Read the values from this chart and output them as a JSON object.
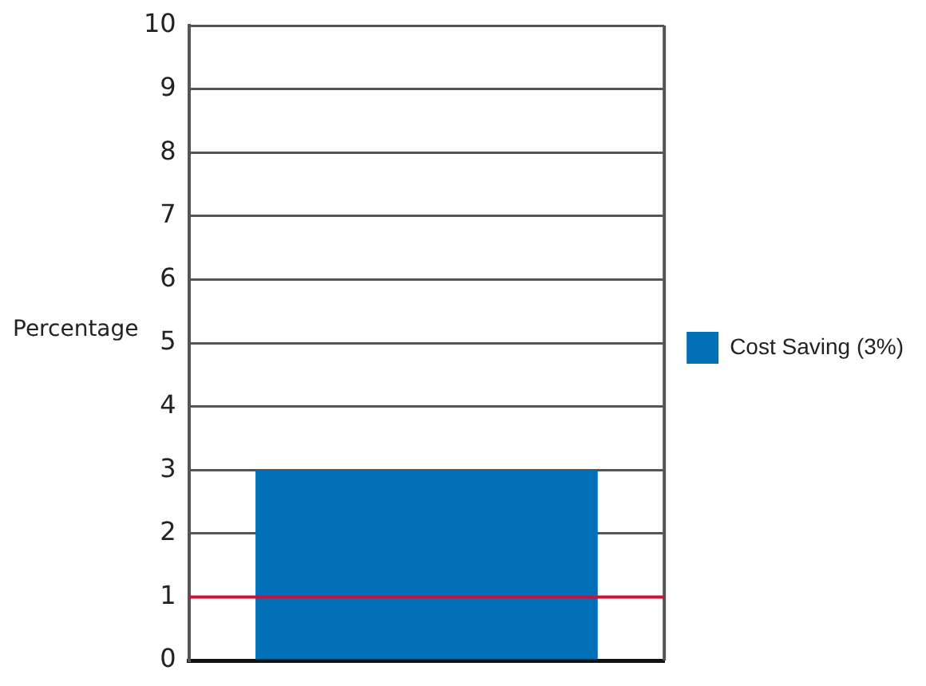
{
  "chart_data": {
    "type": "bar",
    "ylabel": "Percentage",
    "categories": [
      null
    ],
    "series": [
      {
        "name": "Cost Saving (3%)",
        "color": "#0070b8",
        "values": [
          3
        ]
      }
    ],
    "ylim": [
      0,
      10
    ],
    "yticks": [
      0,
      1,
      2,
      3,
      4,
      5,
      6,
      7,
      8,
      9,
      10
    ],
    "grid": "y",
    "legend": "right",
    "ref_lines": [
      {
        "axis": "y",
        "value": 1,
        "color": "#d0103a"
      }
    ]
  }
}
